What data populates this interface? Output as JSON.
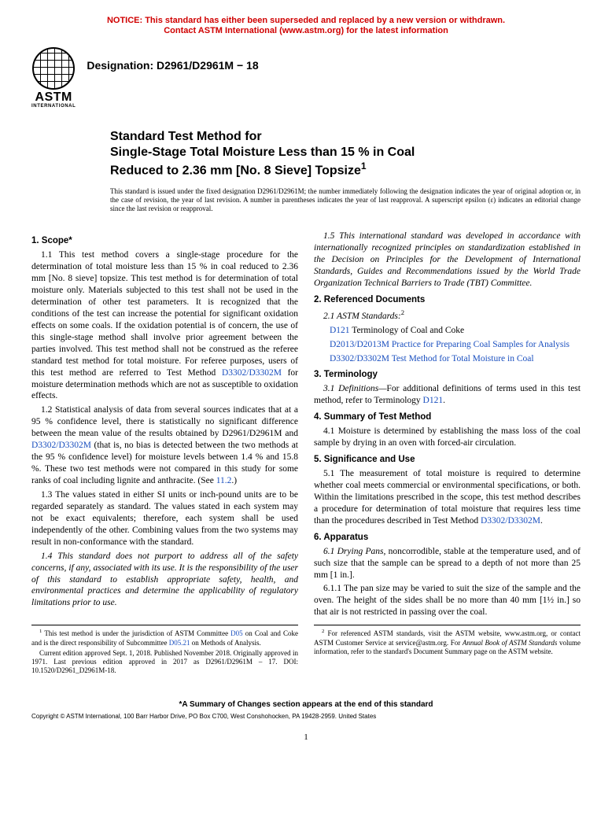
{
  "notice": {
    "line1": "NOTICE: This standard has either been superseded and replaced by a new version or withdrawn.",
    "line2": "Contact ASTM International (www.astm.org) for the latest information"
  },
  "logo": {
    "word": "ASTM",
    "intl": "INTERNATIONAL"
  },
  "designation": "Designation: D2961/D2961M − 18",
  "title": {
    "line1": "Standard Test Method for",
    "line2": "Single-Stage Total Moisture Less than 15 % in Coal",
    "line3": "Reduced to 2.36 mm [No. 8 Sieve] Topsize"
  },
  "title_sup": "1",
  "title_note": "This standard is issued under the fixed designation D2961/D2961M; the number immediately following the designation indicates the year of original adoption or, in the case of revision, the year of last revision. A number in parentheses indicates the year of last reapproval. A superscript epsilon (ε) indicates an editorial change since the last revision or reapproval.",
  "sections": {
    "scope_h": "1. Scope*",
    "s1_1a": "1.1 This test method covers a single-stage procedure for the determination of total moisture less than 15 % in coal reduced to 2.36 mm [No. 8 sieve] topsize. This test method is for determination of total moisture only. Materials subjected to this test shall not be used in the determination of other test parameters. It is recognized that the conditions of the test can increase the potential for significant oxidation effects on some coals. If the oxidation potential is of concern, the use of this single-stage method shall involve prior agreement between the parties involved. This test method shall not be construed as the referee standard test method for total moisture. For referee purposes, users of this test method are referred to Test Method ",
    "s1_1_link": "D3302/D3302M",
    "s1_1b": " for moisture determination methods which are not as susceptible to oxidation effects.",
    "s1_2a": "1.2 Statistical analysis of data from several sources indicates that at a 95 % confidence level, there is statistically no significant difference between the mean value of the results obtained by D2961/D2961M and ",
    "s1_2_link": "D3302/D3302M",
    "s1_2b": " (that is, no bias is detected between the two methods at the 95 % confidence level) for moisture levels between 1.4 % and 15.8 %. These two test methods were not compared in this study for some ranks of coal including lignite and anthracite. (See ",
    "s1_2_link2": "11.2",
    "s1_2c": ".)",
    "s1_3": "1.3 The values stated in either SI units or inch-pound units are to be regarded separately as standard. The values stated in each system may not be exact equivalents; therefore, each system shall be used independently of the other. Combining values from the two systems may result in non-conformance with the standard.",
    "s1_4": "1.4 This standard does not purport to address all of the safety concerns, if any, associated with its use. It is the responsibility of the user of this standard to establish appropriate safety, health, and environmental practices and determine the applicability of regulatory limitations prior to use.",
    "s1_5": "1.5 This international standard was developed in accordance with internationally recognized principles on standardization established in the Decision on Principles for the Development of International Standards, Guides and Recommendations issued by the World Trade Organization Technical Barriers to Trade (TBT) Committee.",
    "ref_h": "2. Referenced Documents",
    "ref_lead": "2.1 ASTM Standards:",
    "ref_sup": "2",
    "ref1a": "D121",
    "ref1b": " Terminology of Coal and Coke",
    "ref2a": "D2013/D2013M",
    "ref2b": " Practice for Preparing Coal Samples for Analysis",
    "ref3a": "D3302/D3302M",
    "ref3b": " Test Method for Total Moisture in Coal",
    "term_h": "3. Terminology",
    "term_a": "3.1 Definitions—",
    "term_b": "For additional definitions of terms used in this test method, refer to Terminology ",
    "term_link": "D121",
    "term_c": ".",
    "sum_h": "4. Summary of Test Method",
    "sum_1": "4.1 Moisture is determined by establishing the mass loss of the coal sample by drying in an oven with forced-air circulation.",
    "sig_h": "5. Significance and Use",
    "sig_1a": "5.1 The measurement of total moisture is required to determine whether coal meets commercial or environmental specifications, or both. Within the limitations prescribed in the scope, this test method describes a procedure for determination of total moisture that requires less time than the procedures described in Test Method ",
    "sig_link": "D3302/D3302M",
    "sig_1b": ".",
    "app_h": "6. Apparatus",
    "app_1a": "6.1 Drying Pans,",
    "app_1b": " noncorrodible, stable at the temperature used, and of such size that the sample can be spread to a depth of not more than 25 mm [1 in.].",
    "app_2": "6.1.1 The pan size may be varied to suit the size of the sample and the oven. The height of the sides shall be no more than 40 mm [1½ in.] so that air is not restricted in passing over the coal."
  },
  "footnotes": {
    "f1a": "This test method is under the jurisdiction of ASTM Committee ",
    "f1_link1": "D05",
    "f1b": " on Coal and Coke and is the direct responsibility of Subcommittee ",
    "f1_link2": "D05.21",
    "f1c": " on Methods of Analysis.",
    "f1d": "Current edition approved Sept. 1, 2018. Published November 2018. Originally approved in 1971. Last previous edition approved in 2017 as D2961/D2961M – 17. DOI: 10.1520/D2961_D2961M-18.",
    "f2a": "For referenced ASTM standards, visit the ASTM website, www.astm.org, or contact ASTM Customer Service at service@astm.org. For ",
    "f2b": "Annual Book of ASTM Standards",
    "f2c": " volume information, refer to the standard's Document Summary page on the ASTM website."
  },
  "bottom": {
    "summary": "*A Summary of Changes section appears at the end of this standard",
    "copyright": "Copyright © ASTM International, 100 Barr Harbor Drive, PO Box C700, West Conshohocken, PA 19428-2959. United States",
    "pagenum": "1"
  }
}
